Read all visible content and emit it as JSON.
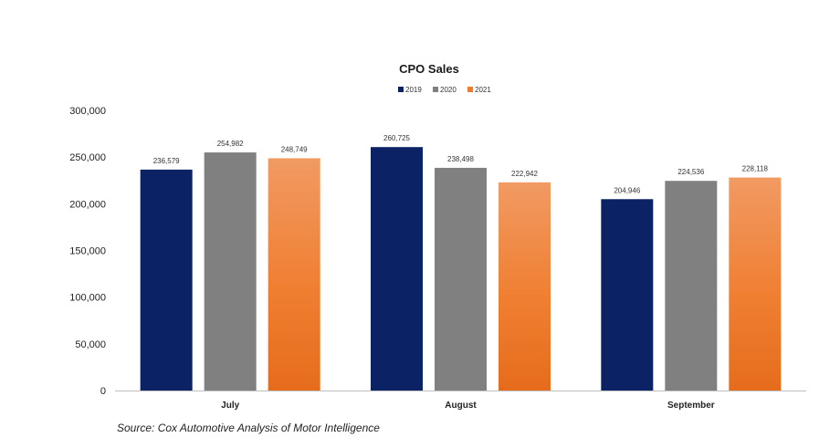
{
  "chart_data": {
    "type": "bar",
    "title": "CPO Sales",
    "categories": [
      "July",
      "August",
      "September"
    ],
    "series": [
      {
        "name": "2019",
        "color": "#0b2264",
        "values": [
          236579,
          260725,
          204946
        ]
      },
      {
        "name": "2020",
        "color": "#808080",
        "values": [
          254982,
          238498,
          224536
        ]
      },
      {
        "name": "2021",
        "color": "#ee7a2a",
        "values": [
          248749,
          222942,
          228118
        ]
      }
    ],
    "data_labels": [
      [
        "236,579",
        "260,725",
        "204,946"
      ],
      [
        "254,982",
        "238,498",
        "224,536"
      ],
      [
        "248,749",
        "222,942",
        "228,118"
      ]
    ],
    "ylim": [
      0,
      300000
    ],
    "yticks": [
      0,
      50000,
      100000,
      150000,
      200000,
      250000,
      300000
    ],
    "ytick_labels": [
      "0",
      "50,000",
      "100,000",
      "150,000",
      "200,000",
      "250,000",
      "300,000"
    ],
    "xlabel": "",
    "ylabel": "",
    "grid": false,
    "legend_position": "top-center",
    "source": "Source: Cox Automotive Analysis of Motor Intelligence"
  }
}
